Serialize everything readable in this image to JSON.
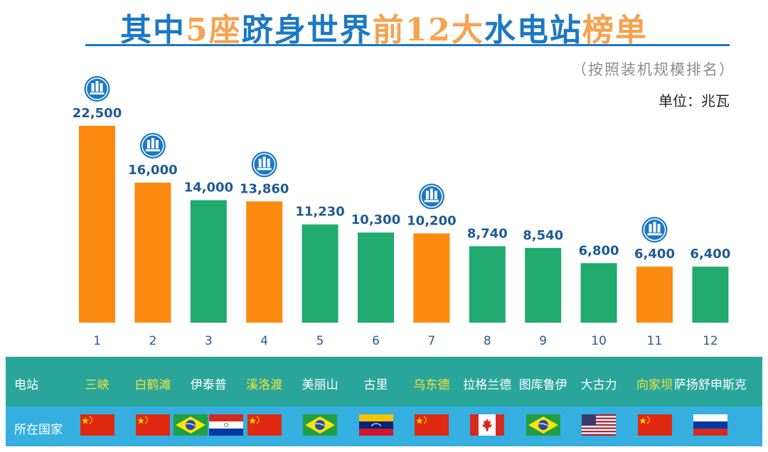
{
  "title": {
    "parts": [
      {
        "text": "其中",
        "color": "blue"
      },
      {
        "text": "5座",
        "color": "orange"
      },
      {
        "text": "跻身世界",
        "color": "blue"
      },
      {
        "text": "前12大",
        "color": "orange"
      },
      {
        "text": "水电站",
        "color": "blue"
      },
      {
        "text": "榜单",
        "color": "orange"
      }
    ]
  },
  "subtitle": "（按照装机规模排名）",
  "unit_label": "单位：兆瓦",
  "colors": {
    "orange": "#fd8a10",
    "green": "#20aa6e",
    "blue": "#1b78c5",
    "label": "#1e5a96",
    "yellow": "#f3e33a",
    "white": "#ffffff"
  },
  "chart_data": {
    "type": "bar",
    "title": "其中5座跻身世界前12大水电站榜单",
    "ylabel": "单位：兆瓦",
    "categories": [
      "1",
      "2",
      "3",
      "4",
      "5",
      "6",
      "7",
      "8",
      "9",
      "10",
      "11",
      "12"
    ],
    "values": [
      22500,
      16000,
      14000,
      13860,
      11230,
      10300,
      10200,
      8740,
      8540,
      6800,
      6400,
      6400
    ],
    "value_labels": [
      "22,500",
      "16,000",
      "14,000",
      "13,860",
      "11,230",
      "10,300",
      "10,200",
      "8,740",
      "8,540",
      "6,800",
      "6,400",
      "6,400"
    ],
    "highlight": [
      true,
      true,
      false,
      true,
      false,
      false,
      true,
      false,
      false,
      false,
      true,
      false
    ],
    "ylim": [
      0,
      23000
    ]
  },
  "table": {
    "station_row_label": "电站",
    "country_row_label": "所在国家",
    "stations": [
      "三峡",
      "白鹤滩",
      "伊泰普",
      "溪洛渡",
      "美丽山",
      "古里",
      "乌东德",
      "拉格兰德",
      "图库鲁伊",
      "大古力",
      "向家坝",
      "萨扬舒申斯克"
    ],
    "countries": [
      [
        "china"
      ],
      [
        "china"
      ],
      [
        "brazil",
        "paraguay"
      ],
      [
        "china"
      ],
      [
        "brazil"
      ],
      [
        "venezuela"
      ],
      [
        "china"
      ],
      [
        "canada"
      ],
      [
        "brazil"
      ],
      [
        "usa"
      ],
      [
        "china"
      ],
      [
        "russia"
      ]
    ]
  }
}
